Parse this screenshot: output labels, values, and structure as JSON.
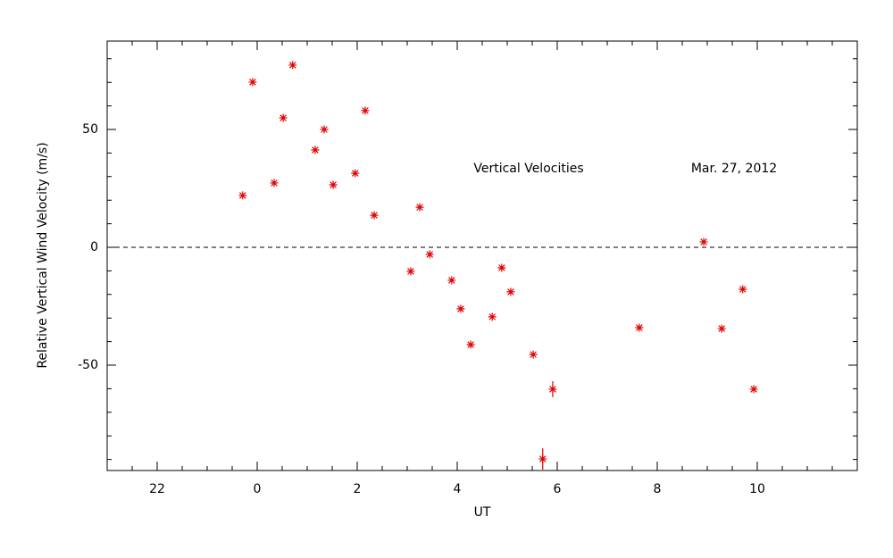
{
  "chart_data": {
    "type": "scatter",
    "annotations": [
      "Vertical Velocities",
      "Mar. 27, 2012"
    ],
    "xlabel": "UT",
    "ylabel": "Relative Vertical Wind Velocity (m/s)",
    "x": [
      -0.29,
      -0.09,
      0.34,
      0.52,
      0.71,
      1.16,
      1.34,
      1.52,
      1.96,
      2.16,
      2.34,
      3.07,
      3.25,
      3.45,
      3.89,
      4.07,
      4.27,
      4.7,
      4.89,
      5.07,
      5.52,
      5.91,
      5.71,
      7.64,
      8.93,
      9.29,
      9.71,
      9.93
    ],
    "values": [
      22.0,
      70.1,
      27.3,
      54.9,
      77.3,
      41.3,
      50.0,
      26.5,
      31.4,
      58.0,
      13.6,
      -10.2,
      17.0,
      -3.0,
      -14.0,
      -26.1,
      -41.3,
      -29.5,
      -8.7,
      -18.9,
      -45.5,
      -60.2,
      -89.8,
      -34.1,
      2.3,
      -34.5,
      -17.8,
      -60.2
    ],
    "errors": [
      null,
      null,
      null,
      null,
      null,
      null,
      null,
      null,
      null,
      null,
      null,
      null,
      null,
      null,
      null,
      null,
      null,
      null,
      null,
      null,
      null,
      3.4,
      4.5,
      null,
      null,
      null,
      null,
      null
    ],
    "color": "#e00000",
    "xlim": [
      -3,
      12
    ],
    "ylim": [
      -94.7,
      87.5
    ],
    "xticks": [
      {
        "value": -2,
        "label": "22"
      },
      0,
      2,
      4,
      6,
      8,
      10
    ],
    "yticks": [
      -50,
      0,
      50
    ],
    "xminor": 4,
    "yminor": 5,
    "reference_line": 0
  }
}
